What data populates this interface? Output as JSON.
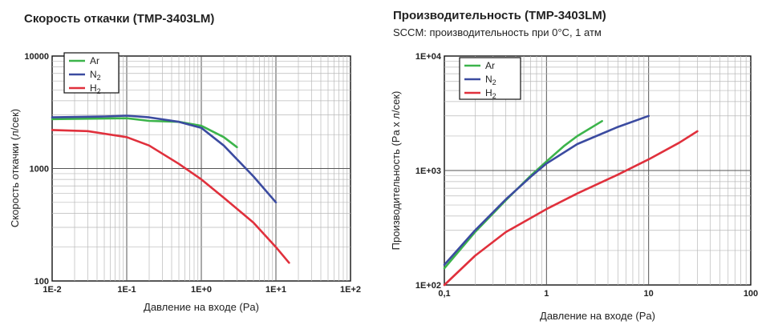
{
  "chart_data": [
    {
      "type": "line",
      "title": "Скорость откачки (TMP-3403LM)",
      "xlabel": "Давление на входе (Pa)",
      "ylabel": "Скорость откачки (л/сек)",
      "xscale": "log",
      "yscale": "log",
      "xlim": [
        0.01,
        100
      ],
      "ylim": [
        100,
        10000
      ],
      "xticks": [
        {
          "value": 0.01,
          "label": "1E-2"
        },
        {
          "value": 0.1,
          "label": "1E-1"
        },
        {
          "value": 1,
          "label": "1E+0"
        },
        {
          "value": 10,
          "label": "1E+1"
        },
        {
          "value": 100,
          "label": "1E+2"
        }
      ],
      "yticks": [
        {
          "value": 100,
          "label": "100"
        },
        {
          "value": 1000,
          "label": "1000"
        },
        {
          "value": 10000,
          "label": "10000"
        }
      ],
      "grid": true,
      "legend": "top-left",
      "series": [
        {
          "name": "Ar",
          "color": "#3cb44b",
          "x": [
            0.01,
            0.1,
            0.2,
            0.5,
            1,
            2,
            3
          ],
          "y": [
            2750,
            2800,
            2650,
            2600,
            2400,
            1900,
            1550
          ]
        },
        {
          "name": "N2",
          "color": "#3b4ba0",
          "x": [
            0.01,
            0.05,
            0.1,
            0.2,
            0.5,
            1,
            2,
            5,
            10
          ],
          "y": [
            2850,
            2900,
            2950,
            2850,
            2600,
            2300,
            1600,
            850,
            500
          ]
        },
        {
          "name": "H2",
          "color": "#e0303c",
          "x": [
            0.01,
            0.03,
            0.1,
            0.2,
            0.5,
            1,
            2,
            5,
            10,
            15
          ],
          "y": [
            2200,
            2150,
            1900,
            1600,
            1100,
            800,
            550,
            330,
            200,
            145
          ]
        }
      ]
    },
    {
      "type": "line",
      "title": "Производительность (TMP-3403LM)",
      "subtitle": "SCCM: производительность при 0°C, 1 атм",
      "xlabel": "Давление на входе (Pa)",
      "ylabel": "Производительность  (Pa x л/сек)",
      "xscale": "log",
      "yscale": "log",
      "xlim": [
        0.1,
        100
      ],
      "ylim": [
        100,
        10000
      ],
      "xticks": [
        {
          "value": 0.1,
          "label": "0,1"
        },
        {
          "value": 1,
          "label": "1"
        },
        {
          "value": 10,
          "label": "10"
        },
        {
          "value": 100,
          "label": "100"
        }
      ],
      "yticks": [
        {
          "value": 100,
          "label": "1E+02"
        },
        {
          "value": 1000,
          "label": "1E+03"
        },
        {
          "value": 10000,
          "label": "1E+04"
        }
      ],
      "grid": true,
      "legend": "top-left",
      "series": [
        {
          "name": "Ar",
          "color": "#3cb44b",
          "x": [
            0.1,
            0.2,
            0.4,
            0.7,
            1,
            1.5,
            2,
            3.5
          ],
          "y": [
            140,
            290,
            550,
            900,
            1200,
            1650,
            2000,
            2700
          ]
        },
        {
          "name": "N2",
          "color": "#3b4ba0",
          "x": [
            0.1,
            0.2,
            0.4,
            0.7,
            1,
            2,
            5,
            10
          ],
          "y": [
            150,
            300,
            560,
            880,
            1150,
            1700,
            2400,
            3000
          ]
        },
        {
          "name": "H2",
          "color": "#e0303c",
          "x": [
            0.1,
            0.2,
            0.4,
            1,
            2,
            5,
            10,
            20,
            30
          ],
          "y": [
            100,
            180,
            290,
            460,
            630,
            920,
            1250,
            1750,
            2200
          ]
        }
      ]
    }
  ]
}
